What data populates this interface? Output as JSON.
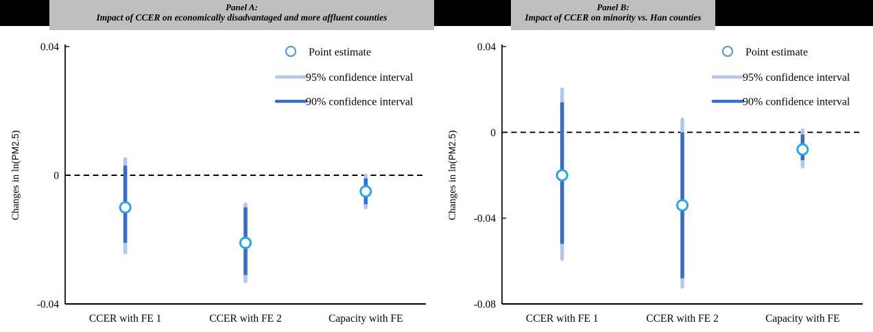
{
  "colors": {
    "header_gray": "#bfbfbf",
    "header_black": "#000000",
    "ci95": "#b4c7e7",
    "ci90": "#3a6cc5",
    "point_marker": "#2aa4e2",
    "legend_marker": "#5b9bd5",
    "axis": "#000000"
  },
  "legend": {
    "point_label": "Point estimate",
    "ci95_label": "95% confidence interval",
    "ci90_label": "90% confidence interval"
  },
  "chart_data": [
    {
      "type": "scatter",
      "panel_label": "Panel A:",
      "title": "Impact of CCER on economically disadvantaged and more affluent counties",
      "ylabel": "Changes in ln(PM2.5)",
      "ylabel_parts": {
        "prefix": "Changes in ln(",
        "unit": "PM2.5",
        "suffix": ")"
      },
      "categories": [
        "CCER with FE 1",
        "CCER with FE 2",
        "Capacity with FE"
      ],
      "points": [
        -0.01,
        -0.021,
        -0.005
      ],
      "ci95": [
        [
          -0.024,
          0.005
        ],
        [
          -0.033,
          -0.009
        ],
        [
          -0.01,
          0.0
        ]
      ],
      "ci90": [
        [
          -0.021,
          0.003
        ],
        [
          -0.031,
          -0.01
        ],
        [
          -0.009,
          -0.001
        ]
      ],
      "ylim": [
        -0.04,
        0.04
      ],
      "yticks": [
        "0.04",
        "0",
        "-0.04"
      ],
      "zero_reference_line": "dashed",
      "legend_position": "top-right",
      "grid": false
    },
    {
      "type": "scatter",
      "panel_label": "Panel B:",
      "title": "Impact of CCER on minority vs. Han counties",
      "ylabel": "Changes in ln(PM2.5)",
      "ylabel_parts": {
        "prefix": "Changes in ln(",
        "unit": "PM2.5",
        "suffix": ")"
      },
      "categories": [
        "CCER with FE 1",
        "CCER with FE 2",
        "Capacity with FE"
      ],
      "points": [
        -0.02,
        -0.034,
        -0.008
      ],
      "ci95": [
        [
          -0.059,
          0.02
        ],
        [
          -0.072,
          0.006
        ],
        [
          -0.016,
          0.001
        ]
      ],
      "ci90": [
        [
          -0.052,
          0.014
        ],
        [
          -0.068,
          0.0
        ],
        [
          -0.013,
          -0.001
        ]
      ],
      "ylim": [
        -0.08,
        0.04
      ],
      "yticks": [
        "0.04",
        "0",
        "-0.04",
        "-0.08"
      ],
      "zero_reference_line": "dashed",
      "legend_position": "top-right",
      "grid": false
    }
  ]
}
